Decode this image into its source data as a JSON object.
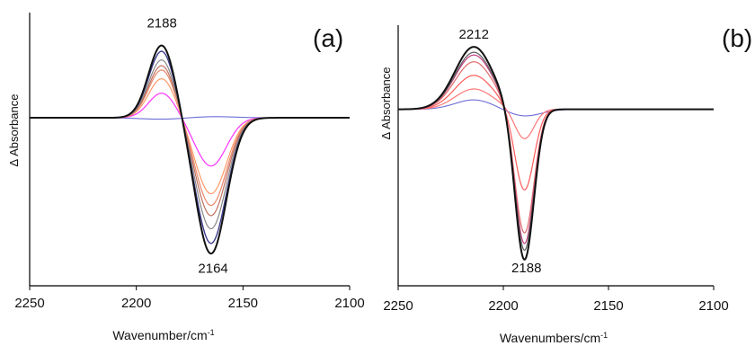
{
  "chart_data": [
    {
      "type": "line",
      "panel_label": "(a)",
      "xlabel": "Wavenumber/cm",
      "xlabel_sup": "-1",
      "ylabel": "Δ Absorbance",
      "xlim": [
        2250,
        2100
      ],
      "x_reversed": true,
      "ylim": [
        -1.15,
        0.72
      ],
      "x_ticks": [
        "2250",
        "2200",
        "2150",
        "2100"
      ],
      "grid": false,
      "legend": "none",
      "annotations": [
        {
          "text": "2188",
          "x": 2188,
          "y": 0.62
        },
        {
          "text": "2164",
          "x": 2164,
          "y": -1.06
        }
      ],
      "series": [
        {
          "color": "#6b6bd6",
          "width": 1.1,
          "values": [
            {
              "c": 2188,
              "w": 10,
              "a": -0.01
            },
            {
              "c": 2164,
              "w": 10,
              "a": 0.008
            }
          ]
        },
        {
          "color": "#ff33ff",
          "width": 1.2,
          "values": [
            {
              "c": 2188,
              "w": 6.2,
              "a": 0.17
            },
            {
              "c": 2165,
              "w": 7.2,
              "a": -0.33
            }
          ]
        },
        {
          "color": "#ff9966",
          "width": 1.2,
          "values": [
            {
              "c": 2188,
              "w": 6.2,
              "a": 0.27
            },
            {
              "c": 2165,
              "w": 7.2,
              "a": -0.52
            }
          ]
        },
        {
          "color": "#e8876a",
          "width": 1.2,
          "values": [
            {
              "c": 2188,
              "w": 6.2,
              "a": 0.33
            },
            {
              "c": 2165,
              "w": 7.2,
              "a": -0.6
            }
          ]
        },
        {
          "color": "#c07060",
          "width": 1.2,
          "values": [
            {
              "c": 2188,
              "w": 6.2,
              "a": 0.36
            },
            {
              "c": 2165,
              "w": 7.2,
              "a": -0.67
            }
          ]
        },
        {
          "color": "#888888",
          "width": 1.2,
          "values": [
            {
              "c": 2188,
              "w": 6.2,
              "a": 0.4
            },
            {
              "c": 2165,
              "w": 7.2,
              "a": -0.76
            }
          ]
        },
        {
          "color": "#3c3c8c",
          "width": 1.4,
          "values": [
            {
              "c": 2188,
              "w": 6.2,
              "a": 0.46
            },
            {
              "c": 2165,
              "w": 7.2,
              "a": -0.86
            }
          ]
        },
        {
          "color": "#111111",
          "width": 2.0,
          "values": [
            {
              "c": 2188,
              "w": 6.2,
              "a": 0.5
            },
            {
              "c": 2165,
              "w": 7.2,
              "a": -0.93
            }
          ]
        }
      ]
    },
    {
      "type": "line",
      "panel_label": "(b)",
      "xlabel": "Wavenumbers/cm",
      "xlabel_sup": "-1",
      "ylabel": "Δ Absorbance",
      "xlim": [
        2250,
        2100
      ],
      "x_reversed": true,
      "ylim": [
        -1.3,
        0.62
      ],
      "x_ticks": [
        "2250",
        "2200",
        "2150",
        "2100"
      ],
      "grid": false,
      "legend": "none",
      "annotations": [
        {
          "text": "2212",
          "x": 2214,
          "y": 0.52
        },
        {
          "text": "2188",
          "x": 2189,
          "y": -1.2
        }
      ],
      "series": [
        {
          "color": "#6b6bd6",
          "width": 1.1,
          "values": [
            {
              "c": 2214,
              "w": 9,
              "a": 0.07
            },
            {
              "c": 2190,
              "w": 8,
              "a": -0.05
            }
          ]
        },
        {
          "color": "#ff7777",
          "width": 1.2,
          "values": [
            {
              "c": 2214,
              "w": 9,
              "a": 0.15
            },
            {
              "c": 2190,
              "w": 4.5,
              "a": -0.22
            }
          ]
        },
        {
          "color": "#ff5a5a",
          "width": 1.2,
          "values": [
            {
              "c": 2214,
              "w": 9,
              "a": 0.25
            },
            {
              "c": 2190,
              "w": 4.5,
              "a": -0.6
            }
          ]
        },
        {
          "color": "#e06a6a",
          "width": 1.2,
          "values": [
            {
              "c": 2214,
              "w": 9,
              "a": 0.35
            },
            {
              "c": 2190,
              "w": 4.5,
              "a": -0.92
            }
          ]
        },
        {
          "color": "#c04080",
          "width": 1.2,
          "values": [
            {
              "c": 2214,
              "w": 9,
              "a": 0.4
            },
            {
              "c": 2190,
              "w": 4.5,
              "a": -1.0
            }
          ]
        },
        {
          "color": "#666666",
          "width": 1.3,
          "values": [
            {
              "c": 2214,
              "w": 9,
              "a": 0.42
            },
            {
              "c": 2190,
              "w": 4.5,
              "a": -1.05
            }
          ]
        },
        {
          "color": "#111111",
          "width": 2.0,
          "values": [
            {
              "c": 2214,
              "w": 9,
              "a": 0.46
            },
            {
              "c": 2190,
              "w": 4.5,
              "a": -1.12
            }
          ]
        }
      ]
    }
  ]
}
